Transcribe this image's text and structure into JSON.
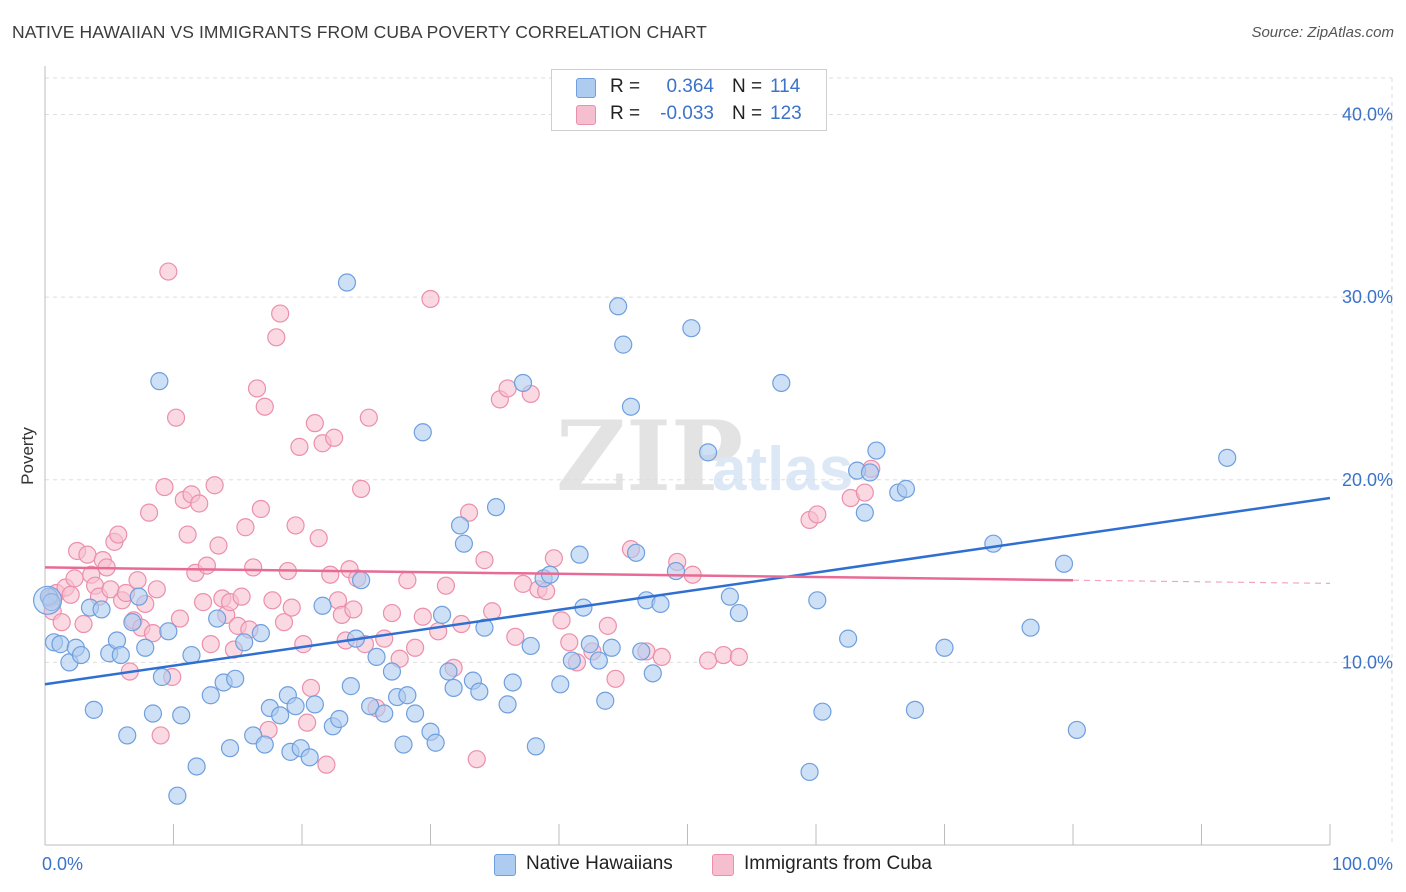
{
  "title": "NATIVE HAWAIIAN VS IMMIGRANTS FROM CUBA POVERTY CORRELATION CHART",
  "source": "Source: ZipAtlas.com",
  "watermark": {
    "zip": "ZIP",
    "atlas": "atlas"
  },
  "legend": {
    "rows": [
      {
        "r_label": "R =",
        "r_value": "0.364",
        "n_label": "N =",
        "n_value": "114"
      },
      {
        "r_label": "R =",
        "r_value": "-0.033",
        "n_label": "N =",
        "n_value": "123"
      }
    ]
  },
  "colors": {
    "blue_fill": "#aecbf0",
    "blue_stroke": "#6f9fde",
    "blue_line": "#2e6fd1",
    "pink_fill": "#f6bfd0",
    "pink_stroke": "#ec8fac",
    "pink_line": "#e86b95",
    "tick_label": "#3b73c9",
    "grid": "#dddddd"
  },
  "chart_data": {
    "type": "scatter",
    "title": "NATIVE HAWAIIAN VS IMMIGRANTS FROM CUBA POVERTY CORRELATION CHART",
    "xlabel": "",
    "ylabel": "Poverty",
    "xlim": [
      0,
      100
    ],
    "ylim": [
      0,
      42
    ],
    "y_ticks": [
      10,
      20,
      30,
      40
    ],
    "y_tick_labels": [
      "10.0%",
      "20.0%",
      "30.0%",
      "40.0%"
    ],
    "x_tick_labels": [
      "0.0%",
      "100.0%"
    ],
    "grid": true,
    "legend_position": "top-center",
    "series": [
      {
        "name": "Native Hawaiians",
        "r": 0.364,
        "n": 114,
        "trend": {
          "x": [
            0,
            100
          ],
          "y": [
            8.8,
            19.0
          ]
        },
        "points": [
          [
            0.3,
            13.6
          ],
          [
            0.5,
            13.3
          ],
          [
            0.7,
            11.1
          ],
          [
            1.2,
            11.0
          ],
          [
            1.9,
            10.0
          ],
          [
            2.4,
            10.8
          ],
          [
            2.8,
            10.4
          ],
          [
            3.5,
            13.0
          ],
          [
            3.8,
            7.4
          ],
          [
            4.4,
            12.9
          ],
          [
            5.0,
            10.5
          ],
          [
            5.6,
            11.2
          ],
          [
            5.9,
            10.4
          ],
          [
            6.4,
            6.0
          ],
          [
            6.8,
            12.2
          ],
          [
            7.3,
            13.6
          ],
          [
            7.8,
            10.8
          ],
          [
            8.4,
            7.2
          ],
          [
            8.9,
            25.4
          ],
          [
            9.1,
            9.2
          ],
          [
            9.6,
            11.7
          ],
          [
            10.3,
            2.7
          ],
          [
            10.6,
            7.1
          ],
          [
            11.4,
            10.4
          ],
          [
            11.8,
            4.3
          ],
          [
            12.9,
            8.2
          ],
          [
            13.4,
            12.4
          ],
          [
            13.9,
            8.9
          ],
          [
            14.4,
            5.3
          ],
          [
            14.8,
            9.1
          ],
          [
            15.5,
            11.1
          ],
          [
            16.2,
            6.0
          ],
          [
            16.8,
            11.6
          ],
          [
            17.1,
            5.5
          ],
          [
            17.5,
            7.5
          ],
          [
            18.3,
            7.1
          ],
          [
            18.9,
            8.2
          ],
          [
            19.1,
            5.1
          ],
          [
            19.5,
            7.6
          ],
          [
            19.9,
            5.3
          ],
          [
            20.6,
            4.8
          ],
          [
            21.0,
            7.7
          ],
          [
            21.6,
            13.1
          ],
          [
            22.4,
            6.5
          ],
          [
            22.9,
            6.9
          ],
          [
            23.5,
            30.8
          ],
          [
            23.8,
            8.7
          ],
          [
            24.2,
            11.3
          ],
          [
            24.6,
            14.5
          ],
          [
            25.3,
            7.6
          ],
          [
            25.8,
            10.3
          ],
          [
            26.4,
            7.2
          ],
          [
            27.0,
            9.5
          ],
          [
            27.4,
            8.1
          ],
          [
            27.9,
            5.5
          ],
          [
            28.2,
            8.2
          ],
          [
            28.8,
            7.2
          ],
          [
            29.4,
            22.6
          ],
          [
            30.0,
            6.2
          ],
          [
            30.4,
            5.6
          ],
          [
            30.9,
            12.6
          ],
          [
            31.4,
            9.5
          ],
          [
            31.8,
            8.6
          ],
          [
            32.3,
            17.5
          ],
          [
            32.6,
            16.5
          ],
          [
            33.3,
            9.0
          ],
          [
            33.8,
            8.4
          ],
          [
            34.2,
            11.9
          ],
          [
            35.1,
            18.5
          ],
          [
            36.0,
            7.7
          ],
          [
            36.4,
            8.9
          ],
          [
            37.2,
            25.3
          ],
          [
            37.8,
            10.9
          ],
          [
            38.2,
            5.4
          ],
          [
            38.8,
            14.6
          ],
          [
            39.3,
            14.8
          ],
          [
            40.1,
            8.8
          ],
          [
            41.0,
            10.1
          ],
          [
            41.6,
            15.9
          ],
          [
            41.9,
            13.0
          ],
          [
            42.4,
            11.0
          ],
          [
            43.1,
            10.1
          ],
          [
            43.6,
            7.9
          ],
          [
            44.1,
            10.8
          ],
          [
            44.6,
            29.5
          ],
          [
            45.0,
            27.4
          ],
          [
            45.6,
            24.0
          ],
          [
            46.0,
            16.0
          ],
          [
            46.4,
            10.6
          ],
          [
            46.8,
            13.4
          ],
          [
            47.3,
            9.4
          ],
          [
            47.9,
            13.2
          ],
          [
            49.1,
            15.0
          ],
          [
            50.3,
            28.3
          ],
          [
            51.6,
            21.5
          ],
          [
            53.3,
            13.6
          ],
          [
            54.0,
            12.7
          ],
          [
            57.3,
            25.3
          ],
          [
            59.5,
            4.0
          ],
          [
            60.1,
            13.4
          ],
          [
            60.5,
            7.3
          ],
          [
            62.5,
            11.3
          ],
          [
            63.2,
            20.5
          ],
          [
            63.8,
            18.2
          ],
          [
            64.2,
            20.4
          ],
          [
            64.7,
            21.6
          ],
          [
            66.4,
            19.3
          ],
          [
            67.7,
            7.4
          ],
          [
            70.0,
            10.8
          ],
          [
            73.8,
            16.5
          ],
          [
            76.7,
            11.9
          ],
          [
            79.3,
            15.4
          ],
          [
            80.3,
            6.3
          ],
          [
            92.0,
            21.2
          ],
          [
            67.0,
            19.5
          ]
        ]
      },
      {
        "name": "Immigrants from Cuba",
        "r": -0.033,
        "n": 123,
        "trend": {
          "x": [
            0,
            80
          ],
          "y": [
            15.2,
            14.5
          ]
        },
        "points": [
          [
            0.4,
            13.5
          ],
          [
            0.6,
            12.8
          ],
          [
            0.9,
            13.8
          ],
          [
            1.3,
            12.2
          ],
          [
            1.6,
            14.1
          ],
          [
            2.0,
            13.7
          ],
          [
            2.3,
            14.6
          ],
          [
            2.5,
            16.1
          ],
          [
            3.0,
            12.1
          ],
          [
            3.3,
            15.9
          ],
          [
            3.6,
            14.8
          ],
          [
            3.9,
            14.2
          ],
          [
            4.2,
            13.6
          ],
          [
            4.5,
            15.6
          ],
          [
            4.8,
            15.2
          ],
          [
            5.1,
            14.0
          ],
          [
            5.4,
            16.6
          ],
          [
            5.7,
            17.0
          ],
          [
            6.0,
            13.4
          ],
          [
            6.3,
            13.8
          ],
          [
            6.6,
            9.5
          ],
          [
            6.9,
            12.3
          ],
          [
            7.2,
            14.5
          ],
          [
            7.5,
            11.9
          ],
          [
            7.8,
            13.2
          ],
          [
            8.1,
            18.2
          ],
          [
            8.4,
            11.6
          ],
          [
            8.7,
            14.0
          ],
          [
            9.0,
            6.0
          ],
          [
            9.3,
            19.6
          ],
          [
            9.6,
            31.4
          ],
          [
            9.9,
            9.2
          ],
          [
            10.2,
            23.4
          ],
          [
            10.5,
            12.4
          ],
          [
            10.8,
            18.9
          ],
          [
            11.1,
            17.0
          ],
          [
            11.4,
            19.2
          ],
          [
            11.7,
            14.9
          ],
          [
            12.0,
            18.7
          ],
          [
            12.3,
            13.3
          ],
          [
            12.6,
            15.3
          ],
          [
            12.9,
            11.0
          ],
          [
            13.2,
            19.7
          ],
          [
            13.5,
            16.4
          ],
          [
            13.8,
            13.5
          ],
          [
            14.1,
            12.6
          ],
          [
            14.4,
            13.3
          ],
          [
            14.7,
            10.7
          ],
          [
            15.0,
            12.0
          ],
          [
            15.3,
            13.6
          ],
          [
            15.6,
            17.4
          ],
          [
            15.9,
            11.8
          ],
          [
            16.2,
            15.2
          ],
          [
            16.5,
            25.0
          ],
          [
            16.8,
            18.4
          ],
          [
            17.1,
            24.0
          ],
          [
            17.4,
            6.3
          ],
          [
            17.7,
            13.4
          ],
          [
            18.0,
            27.8
          ],
          [
            18.3,
            29.1
          ],
          [
            18.6,
            12.2
          ],
          [
            18.9,
            15.0
          ],
          [
            19.2,
            13.0
          ],
          [
            19.5,
            17.5
          ],
          [
            19.8,
            21.8
          ],
          [
            20.1,
            11.0
          ],
          [
            20.4,
            6.7
          ],
          [
            20.7,
            8.6
          ],
          [
            21.0,
            23.1
          ],
          [
            21.3,
            16.8
          ],
          [
            21.6,
            22.0
          ],
          [
            21.9,
            4.4
          ],
          [
            22.2,
            14.8
          ],
          [
            22.5,
            22.3
          ],
          [
            22.8,
            13.4
          ],
          [
            23.1,
            12.6
          ],
          [
            23.4,
            11.2
          ],
          [
            23.7,
            15.1
          ],
          [
            24.0,
            12.9
          ],
          [
            24.3,
            14.6
          ],
          [
            24.6,
            19.5
          ],
          [
            24.9,
            11.0
          ],
          [
            25.2,
            23.4
          ],
          [
            25.8,
            7.5
          ],
          [
            26.4,
            11.3
          ],
          [
            27.0,
            12.7
          ],
          [
            27.6,
            10.2
          ],
          [
            28.2,
            14.5
          ],
          [
            28.8,
            10.8
          ],
          [
            29.4,
            12.5
          ],
          [
            30.0,
            29.9
          ],
          [
            30.6,
            11.7
          ],
          [
            31.2,
            14.2
          ],
          [
            31.8,
            9.7
          ],
          [
            32.4,
            12.1
          ],
          [
            33.0,
            18.2
          ],
          [
            33.6,
            4.7
          ],
          [
            34.2,
            15.6
          ],
          [
            34.8,
            12.8
          ],
          [
            35.4,
            24.4
          ],
          [
            36.0,
            25.0
          ],
          [
            36.6,
            11.4
          ],
          [
            37.2,
            14.3
          ],
          [
            37.8,
            24.7
          ],
          [
            38.4,
            14.0
          ],
          [
            39.0,
            13.9
          ],
          [
            39.6,
            15.7
          ],
          [
            40.2,
            12.3
          ],
          [
            40.8,
            11.1
          ],
          [
            41.4,
            10.0
          ],
          [
            42.6,
            10.6
          ],
          [
            43.8,
            12.0
          ],
          [
            44.4,
            9.1
          ],
          [
            45.6,
            16.2
          ],
          [
            46.8,
            10.6
          ],
          [
            48.0,
            10.3
          ],
          [
            49.2,
            15.5
          ],
          [
            50.4,
            14.8
          ],
          [
            51.6,
            10.1
          ],
          [
            52.8,
            10.4
          ],
          [
            54.0,
            10.3
          ],
          [
            59.5,
            17.8
          ],
          [
            60.1,
            18.1
          ],
          [
            62.7,
            19.0
          ],
          [
            63.8,
            19.3
          ],
          [
            64.3,
            20.6
          ]
        ]
      }
    ]
  },
  "bottom_legend": [
    "Native Hawaiians",
    "Immigrants from Cuba"
  ]
}
